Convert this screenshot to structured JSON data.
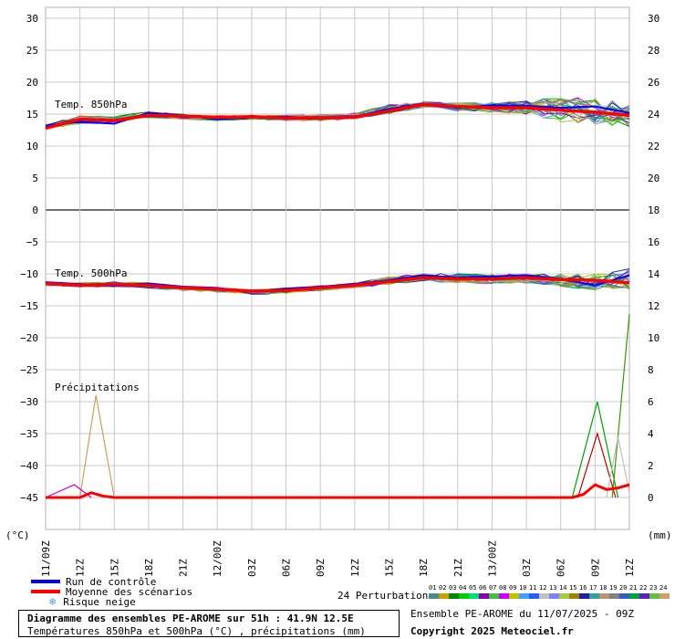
{
  "chart_data": {
    "type": "line",
    "title": "Diagramme des ensembles PE-AROME sur 51h : 41.9N 12.5E",
    "subtitle": "Températures 850hPa et 500hPa (°C) , précipitations (mm)",
    "left_axis": {
      "unit": "(°C)",
      "range": [
        -50,
        30
      ],
      "ticks": [
        30,
        25,
        20,
        15,
        10,
        5,
        0,
        -5,
        -10,
        -15,
        -20,
        -25,
        -30,
        -35,
        -40,
        -45
      ]
    },
    "right_axis": {
      "unit": "(mm)",
      "range": [
        -4,
        30
      ],
      "ticks": [
        30,
        28,
        26,
        24,
        22,
        20,
        18,
        16,
        14,
        12,
        10,
        8,
        6,
        4,
        2,
        0
      ]
    },
    "x_axis": {
      "ticks": [
        "11/09Z",
        "12Z",
        "15Z",
        "18Z",
        "21Z",
        "12/00Z",
        "03Z",
        "06Z",
        "09Z",
        "12Z",
        "15Z",
        "18Z",
        "21Z",
        "13/00Z",
        "03Z",
        "06Z",
        "09Z",
        "12Z"
      ]
    },
    "grid": true,
    "panels": [
      {
        "label": "Temp. 850hPa"
      },
      {
        "label": "Temp. 500hPa"
      },
      {
        "label": "Précipitations"
      }
    ],
    "series_850": {
      "hours": [
        0,
        3,
        6,
        9,
        12,
        15,
        18,
        21,
        24,
        27,
        30,
        33,
        36,
        39,
        42,
        45,
        48,
        51
      ],
      "mean": [
        12.8,
        14.2,
        14.0,
        14.8,
        14.7,
        14.5,
        14.6,
        14.4,
        14.4,
        14.5,
        15.5,
        16.5,
        16.2,
        16.0,
        16.0,
        15.6,
        15.3,
        14.8
      ],
      "control": [
        13.2,
        13.8,
        13.5,
        15.2,
        14.8,
        14.2,
        14.5,
        14.6,
        14.3,
        14.6,
        15.8,
        16.6,
        16.0,
        16.4,
        16.3,
        16.0,
        16.2,
        15.2
      ],
      "min": [
        12.5,
        13.2,
        13.3,
        14.2,
        14.0,
        13.8,
        14.0,
        13.8,
        13.7,
        14.0,
        14.8,
        15.8,
        15.2,
        15.0,
        14.5,
        12.8,
        12.5,
        12.2
      ],
      "max": [
        13.5,
        15.0,
        15.0,
        15.6,
        15.2,
        15.0,
        15.0,
        15.0,
        15.2,
        15.4,
        16.8,
        17.2,
        17.0,
        17.2,
        17.6,
        18.8,
        18.5,
        17.4
      ]
    },
    "series_500": {
      "hours": [
        0,
        3,
        6,
        9,
        12,
        15,
        18,
        21,
        24,
        27,
        30,
        33,
        36,
        39,
        42,
        45,
        48,
        51
      ],
      "mean": [
        -11.5,
        -11.8,
        -11.6,
        -11.8,
        -12.2,
        -12.4,
        -12.7,
        -12.6,
        -12.2,
        -11.8,
        -11.2,
        -10.6,
        -10.8,
        -10.8,
        -10.6,
        -10.9,
        -11.0,
        -11.4
      ],
      "control": [
        -11.3,
        -11.6,
        -11.8,
        -11.5,
        -12.0,
        -12.2,
        -12.8,
        -12.3,
        -12.0,
        -11.6,
        -11.0,
        -10.2,
        -10.6,
        -10.4,
        -10.2,
        -10.8,
        -11.8,
        -10.2
      ],
      "min": [
        -12.0,
        -12.3,
        -12.2,
        -12.4,
        -12.8,
        -13.0,
        -13.4,
        -13.3,
        -12.8,
        -12.4,
        -12.0,
        -11.4,
        -11.8,
        -11.8,
        -11.8,
        -12.6,
        -13.0,
        -13.2
      ],
      "max": [
        -11.0,
        -11.2,
        -11.0,
        -11.2,
        -11.8,
        -12.0,
        -12.3,
        -12.0,
        -11.6,
        -11.2,
        -10.2,
        -9.6,
        -9.6,
        -9.8,
        -9.6,
        -9.6,
        -9.5,
        -8.4
      ]
    },
    "precip": {
      "mean_hours": [
        0,
        3,
        4,
        5,
        6,
        12,
        18,
        24,
        30,
        36,
        42,
        46,
        47,
        48,
        49,
        50,
        51
      ],
      "mean_mm": [
        0,
        0,
        0.3,
        0.1,
        0,
        0,
        0,
        0,
        0,
        0,
        0,
        0,
        0.2,
        0.8,
        0.5,
        0.6,
        0.8
      ],
      "spikes": [
        {
          "color": "#c8a060",
          "hours": [
            3,
            4.4,
            6
          ],
          "mm": [
            0,
            6.4,
            0
          ]
        },
        {
          "color": "#cc00cc",
          "hours": [
            0,
            2.5,
            4
          ],
          "mm": [
            0,
            0.8,
            0
          ]
        },
        {
          "color": "#00a000",
          "hours": [
            46,
            48.2,
            50
          ],
          "mm": [
            0,
            6.0,
            0
          ]
        },
        {
          "color": "#c00000",
          "hours": [
            46.5,
            48.2,
            49.8
          ],
          "mm": [
            0,
            4.0,
            0
          ]
        },
        {
          "color": "#3a9a00",
          "hours": [
            49.5,
            51
          ],
          "mm": [
            0,
            11.5
          ]
        },
        {
          "color": "#c0c0c0",
          "hours": [
            49,
            50,
            51
          ],
          "mm": [
            0,
            3.8,
            0.3
          ]
        }
      ]
    }
  },
  "legend": {
    "control_label": "Run de contrôle",
    "mean_label": "Moyenne des scénarios",
    "snow_label": "Risque neige",
    "control_color": "#0000ff",
    "mean_color": "#ff0000",
    "snow_icon": "snowflake-icon"
  },
  "perturbations": {
    "label": "24 Perturbations",
    "ids": [
      "01",
      "02",
      "03",
      "04",
      "05",
      "06",
      "07",
      "08",
      "09",
      "10",
      "11",
      "12",
      "13",
      "14",
      "15",
      "16",
      "17",
      "18",
      "19",
      "20",
      "21",
      "22",
      "23",
      "24"
    ],
    "colors": [
      "#4a8a8a",
      "#c8a000",
      "#008800",
      "#00cc00",
      "#00e070",
      "#8800aa",
      "#40c040",
      "#cc00ff",
      "#c0c000",
      "#40a0ff",
      "#2060ff",
      "#c0c0c0",
      "#8080ff",
      "#a0d040",
      "#a08000",
      "#2020a0",
      "#30a0a0",
      "#c09070",
      "#808080",
      "#3060c0",
      "#00a040",
      "#6020c0",
      "#60c040",
      "#d0a060"
    ]
  },
  "caption": {
    "title": "Diagramme des ensembles PE-AROME sur 51h : 41.9N 12.5E",
    "subtitle": "Températures 850hPa et 500hPa (°C) , précipitations (mm)"
  },
  "info": {
    "run": "Ensemble PE-AROME du 11/07/2025 - 09Z",
    "copyright": "Copyright 2025 Meteociel.fr"
  }
}
